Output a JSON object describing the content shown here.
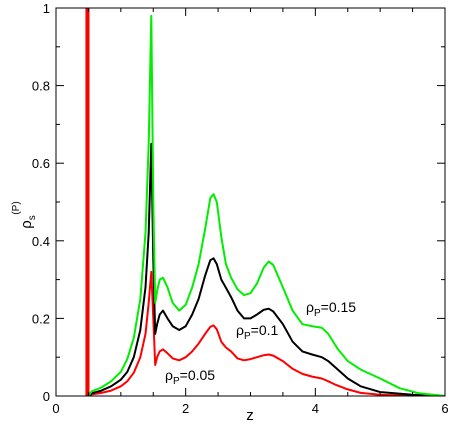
{
  "chart_data": {
    "type": "line",
    "xlabel": "z",
    "ylabel": {
      "base": "ρ",
      "sub": "s",
      "sup": "(P)"
    },
    "xlim": [
      0,
      6
    ],
    "ylim": [
      0,
      1
    ],
    "x_ticks": [
      "0",
      "2",
      "4",
      "6"
    ],
    "y_ticks": [
      "0",
      "0.2",
      "0.4",
      "0.6",
      "0.8",
      "1"
    ],
    "grid": false,
    "series": [
      {
        "label": {
          "base": "ρ",
          "sub": "P",
          "rest": "=0.05"
        },
        "color": "#ff0000",
        "points": [
          [
            0.5,
            0.0
          ],
          [
            0.55,
            0.004
          ],
          [
            0.7,
            0.008
          ],
          [
            0.85,
            0.014
          ],
          [
            1.0,
            0.025
          ],
          [
            1.1,
            0.038
          ],
          [
            1.2,
            0.06
          ],
          [
            1.3,
            0.1
          ],
          [
            1.38,
            0.16
          ],
          [
            1.43,
            0.24
          ],
          [
            1.47,
            0.32
          ],
          [
            1.5,
            0.2
          ],
          [
            1.53,
            0.08
          ],
          [
            1.56,
            0.1
          ],
          [
            1.6,
            0.115
          ],
          [
            1.65,
            0.12
          ],
          [
            1.72,
            0.11
          ],
          [
            1.8,
            0.097
          ],
          [
            1.9,
            0.092
          ],
          [
            2.0,
            0.1
          ],
          [
            2.1,
            0.115
          ],
          [
            2.2,
            0.135
          ],
          [
            2.3,
            0.16
          ],
          [
            2.38,
            0.178
          ],
          [
            2.43,
            0.182
          ],
          [
            2.48,
            0.172
          ],
          [
            2.55,
            0.14
          ],
          [
            2.62,
            0.125
          ],
          [
            2.7,
            0.115
          ],
          [
            2.8,
            0.097
          ],
          [
            2.9,
            0.092
          ],
          [
            3.0,
            0.095
          ],
          [
            3.1,
            0.1
          ],
          [
            3.2,
            0.105
          ],
          [
            3.28,
            0.107
          ],
          [
            3.35,
            0.104
          ],
          [
            3.5,
            0.09
          ],
          [
            3.65,
            0.07
          ],
          [
            3.8,
            0.057
          ],
          [
            3.95,
            0.05
          ],
          [
            4.1,
            0.045
          ],
          [
            4.2,
            0.038
          ],
          [
            4.3,
            0.03
          ],
          [
            4.5,
            0.017
          ],
          [
            4.7,
            0.008
          ],
          [
            5.0,
            0.003
          ],
          [
            5.5,
            0.001
          ],
          [
            6.0,
            0.0
          ]
        ]
      },
      {
        "label": {
          "base": "ρ",
          "sub": "P",
          "rest": "=0.1"
        },
        "color": "#000000",
        "points": [
          [
            0.5,
            0.0
          ],
          [
            0.55,
            0.007
          ],
          [
            0.7,
            0.014
          ],
          [
            0.85,
            0.025
          ],
          [
            1.0,
            0.042
          ],
          [
            1.1,
            0.062
          ],
          [
            1.2,
            0.1
          ],
          [
            1.3,
            0.17
          ],
          [
            1.38,
            0.28
          ],
          [
            1.43,
            0.42
          ],
          [
            1.47,
            0.65
          ],
          [
            1.5,
            0.35
          ],
          [
            1.53,
            0.16
          ],
          [
            1.56,
            0.185
          ],
          [
            1.6,
            0.21
          ],
          [
            1.65,
            0.22
          ],
          [
            1.72,
            0.2
          ],
          [
            1.8,
            0.18
          ],
          [
            1.9,
            0.17
          ],
          [
            2.0,
            0.18
          ],
          [
            2.1,
            0.21
          ],
          [
            2.2,
            0.25
          ],
          [
            2.3,
            0.31
          ],
          [
            2.38,
            0.35
          ],
          [
            2.43,
            0.355
          ],
          [
            2.48,
            0.34
          ],
          [
            2.55,
            0.3
          ],
          [
            2.6,
            0.285
          ],
          [
            2.7,
            0.255
          ],
          [
            2.8,
            0.22
          ],
          [
            2.9,
            0.2
          ],
          [
            3.0,
            0.2
          ],
          [
            3.1,
            0.21
          ],
          [
            3.2,
            0.222
          ],
          [
            3.28,
            0.225
          ],
          [
            3.35,
            0.218
          ],
          [
            3.5,
            0.185
          ],
          [
            3.65,
            0.14
          ],
          [
            3.8,
            0.115
          ],
          [
            3.95,
            0.107
          ],
          [
            4.1,
            0.1
          ],
          [
            4.2,
            0.09
          ],
          [
            4.3,
            0.075
          ],
          [
            4.5,
            0.045
          ],
          [
            4.7,
            0.025
          ],
          [
            5.0,
            0.01
          ],
          [
            5.5,
            0.003
          ],
          [
            6.0,
            0.0
          ]
        ]
      },
      {
        "label": {
          "base": "ρ",
          "sub": "P",
          "rest": "=0.15"
        },
        "color": "#00ee00",
        "points": [
          [
            0.5,
            0.0
          ],
          [
            0.55,
            0.012
          ],
          [
            0.7,
            0.022
          ],
          [
            0.85,
            0.038
          ],
          [
            1.0,
            0.062
          ],
          [
            1.1,
            0.095
          ],
          [
            1.2,
            0.15
          ],
          [
            1.3,
            0.25
          ],
          [
            1.38,
            0.42
          ],
          [
            1.43,
            0.65
          ],
          [
            1.47,
            0.98
          ],
          [
            1.5,
            0.5
          ],
          [
            1.53,
            0.24
          ],
          [
            1.56,
            0.27
          ],
          [
            1.6,
            0.3
          ],
          [
            1.65,
            0.305
          ],
          [
            1.72,
            0.28
          ],
          [
            1.8,
            0.24
          ],
          [
            1.9,
            0.22
          ],
          [
            2.0,
            0.235
          ],
          [
            2.1,
            0.28
          ],
          [
            2.2,
            0.34
          ],
          [
            2.3,
            0.43
          ],
          [
            2.38,
            0.51
          ],
          [
            2.43,
            0.52
          ],
          [
            2.48,
            0.5
          ],
          [
            2.55,
            0.41
          ],
          [
            2.62,
            0.34
          ],
          [
            2.7,
            0.305
          ],
          [
            2.8,
            0.275
          ],
          [
            2.9,
            0.26
          ],
          [
            3.0,
            0.265
          ],
          [
            3.1,
            0.29
          ],
          [
            3.2,
            0.33
          ],
          [
            3.28,
            0.347
          ],
          [
            3.35,
            0.338
          ],
          [
            3.5,
            0.28
          ],
          [
            3.65,
            0.22
          ],
          [
            3.8,
            0.185
          ],
          [
            3.95,
            0.18
          ],
          [
            4.1,
            0.176
          ],
          [
            4.2,
            0.16
          ],
          [
            4.35,
            0.12
          ],
          [
            4.5,
            0.09
          ],
          [
            4.7,
            0.068
          ],
          [
            5.0,
            0.045
          ],
          [
            5.3,
            0.02
          ],
          [
            5.6,
            0.007
          ],
          [
            6.0,
            0.0
          ]
        ]
      }
    ]
  }
}
